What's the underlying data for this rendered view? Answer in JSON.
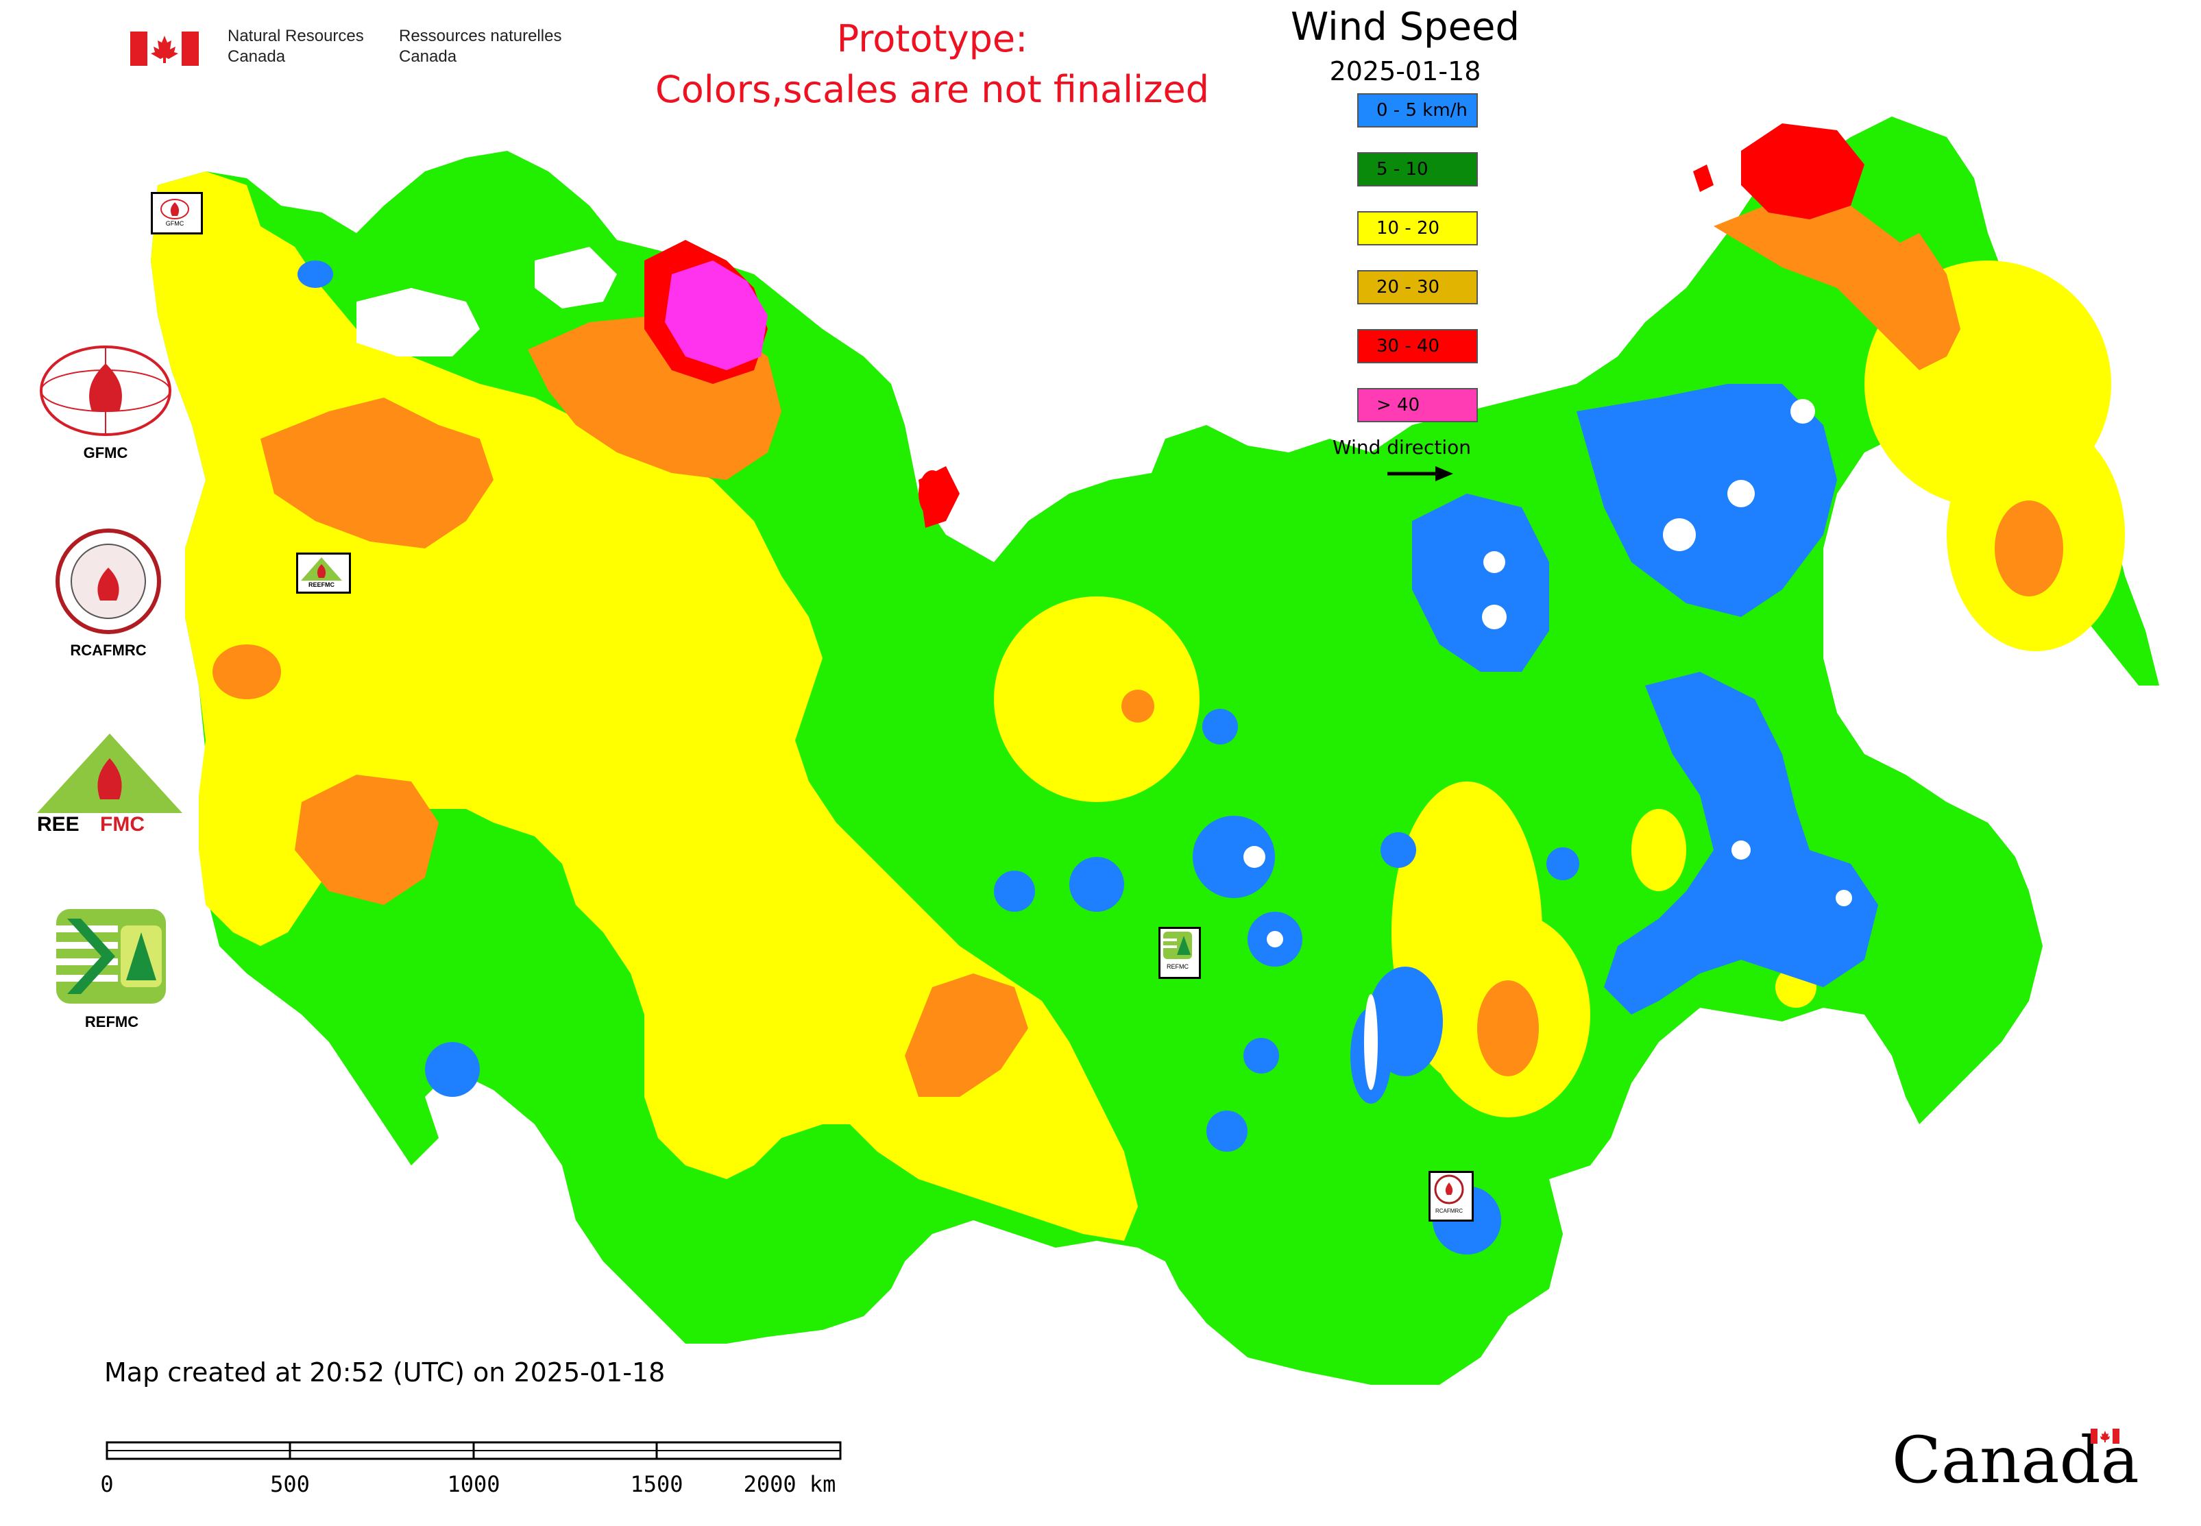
{
  "header": {
    "nrcan_en": [
      "Natural Resources",
      "Canada"
    ],
    "nrcan_fr": [
      "Ressources naturelles",
      "Canada"
    ],
    "prototype_lines": [
      "Prototype:",
      "Colors,scales are not finalized"
    ]
  },
  "title": "Wind Speed",
  "date": "2025-01-18",
  "legend": {
    "items": [
      {
        "label": "0 - 5 km/h",
        "color": "#1e88ff"
      },
      {
        "label": "5 - 10",
        "color": "#0a8a0a"
      },
      {
        "label": "10 - 20",
        "color": "#ffff00"
      },
      {
        "label": "20 - 30",
        "color": "#e0b400"
      },
      {
        "label": "30 - 40",
        "color": "#ff0000"
      },
      {
        "label": "> 40",
        "color": "#ff3cb4"
      }
    ],
    "wind_direction_label": "Wind direction"
  },
  "map_colors": {
    "blue": "#1e7fff",
    "green": "#22ee00",
    "yellow": "#ffff00",
    "orange": "#ff8c14",
    "red": "#ff0000",
    "magenta": "#ff33ee"
  },
  "partners": [
    {
      "caption": "GFMC",
      "icon": "gfmc-logo-icon"
    },
    {
      "caption": "RCAFMRC",
      "icon": "rcafmrc-logo-icon"
    },
    {
      "caption": "REEFMC",
      "icon": "reefmc-logo-icon",
      "logo_text": [
        "REE",
        "FMC"
      ]
    },
    {
      "caption": "REFMC",
      "icon": "refmc-logo-icon"
    }
  ],
  "map_markers": [
    "GFMC",
    "REEFMC",
    "REFMC",
    "RCAFMRC"
  ],
  "footer_note": "Map created at 20:52 (UTC) on 2025-01-18",
  "scale": {
    "labels": [
      "0",
      "500",
      "1000",
      "1500",
      "2000 km"
    ]
  },
  "canada_wordmark": "Canada"
}
